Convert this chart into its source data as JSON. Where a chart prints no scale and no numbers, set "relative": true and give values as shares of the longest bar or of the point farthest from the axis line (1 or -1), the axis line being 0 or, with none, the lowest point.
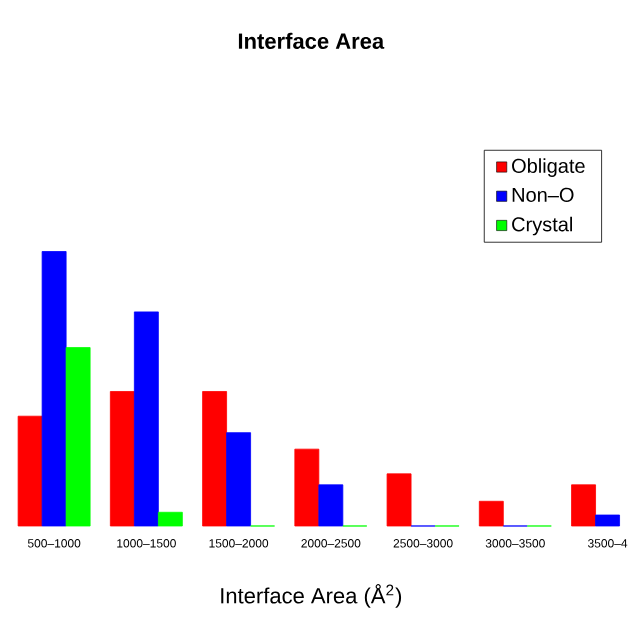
{
  "chart_data": {
    "type": "bar",
    "title": "Interface Area",
    "xlabel": "Interface Area (Å$^{2}$)",
    "categories": [
      "500–1000",
      "1000–1500",
      "1500–2000",
      "2000–2500",
      "2500–3000",
      "3000–3500",
      "3500–4"
    ],
    "series": [
      {
        "name": "Obligate",
        "color": "#ff0000",
        "values": [
          0.4,
          0.49,
          0.49,
          0.28,
          0.19,
          0.09,
          0.15
        ]
      },
      {
        "name": "Non–O",
        "color": "#0000ff",
        "values": [
          1.0,
          0.78,
          0.34,
          0.15,
          0,
          0,
          0.04
        ]
      },
      {
        "name": "Crystal",
        "color": "#00ff00",
        "values": [
          0.65,
          0.05,
          0,
          0,
          0,
          0,
          null
        ]
      }
    ],
    "relative": true,
    "legend": "top right"
  }
}
